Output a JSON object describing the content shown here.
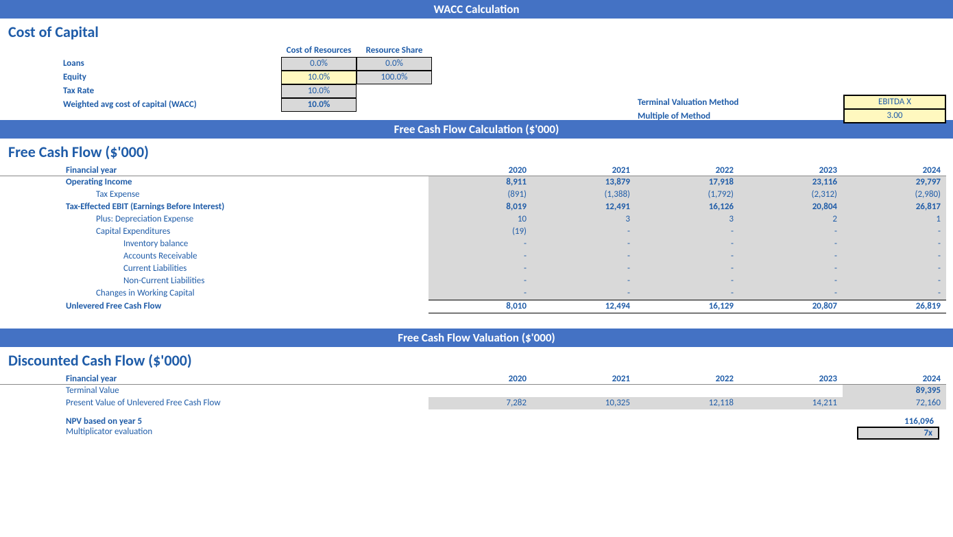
{
  "banners": {
    "wacc": "WACC Calculation",
    "fcf_calc": "Free Cash Flow Calculation ($'000)",
    "fcf_val": "Free Cash Flow Valuation ($'000)"
  },
  "headings": {
    "cost_of_capital": "Cost of Capital",
    "fcf": "Free Cash Flow ($'000)",
    "dcf": "Discounted Cash Flow ($'000)"
  },
  "coc": {
    "hdr_cost": "Cost of Resources",
    "hdr_share": "Resource Share",
    "loans_label": "Loans",
    "loans_cost": "0.0%",
    "loans_share": "0.0%",
    "equity_label": "Equity",
    "equity_cost": "10.0%",
    "equity_share": "100.0%",
    "tax_label": "Tax Rate",
    "tax_val": "10.0%",
    "wacc_label": "Weighted avg cost of capital (WACC)",
    "wacc_val": "10.0%"
  },
  "side": {
    "tvm_label": "Terminal Valuation Method",
    "tvm_val": "EBITDA X",
    "mom_label": "Multiple of Method",
    "mom_val": "3.00"
  },
  "years_label": "Financial year",
  "years": [
    "2020",
    "2021",
    "2022",
    "2023",
    "2024"
  ],
  "fcf": {
    "rows": [
      {
        "label": "Operating Income",
        "indent": 0,
        "bold": true,
        "vals": [
          "8,911",
          "13,879",
          "17,918",
          "23,116",
          "29,797"
        ]
      },
      {
        "label": "Tax Expense",
        "indent": 1,
        "bold": false,
        "vals": [
          "(891)",
          "(1,388)",
          "(1,792)",
          "(2,312)",
          "(2,980)"
        ]
      },
      {
        "label": "Tax-Effected EBIT (Earnings Before Interest)",
        "indent": 0,
        "bold": true,
        "vals": [
          "8,019",
          "12,491",
          "16,126",
          "20,804",
          "26,817"
        ]
      },
      {
        "label": "Plus: Depreciation Expense",
        "indent": 1,
        "bold": false,
        "vals": [
          "10",
          "3",
          "3",
          "2",
          "1"
        ]
      },
      {
        "label": "Capital Expenditures",
        "indent": 1,
        "bold": false,
        "vals": [
          "(19)",
          "-",
          "-",
          "-",
          "-"
        ]
      },
      {
        "label": "Inventory balance",
        "indent": 2,
        "bold": false,
        "vals": [
          "-",
          "-",
          "-",
          "-",
          "-"
        ]
      },
      {
        "label": "Accounts Receivable",
        "indent": 2,
        "bold": false,
        "vals": [
          "-",
          "-",
          "-",
          "-",
          "-"
        ]
      },
      {
        "label": "Current Liabilities",
        "indent": 2,
        "bold": false,
        "vals": [
          "-",
          "-",
          "-",
          "-",
          "-"
        ]
      },
      {
        "label": "Non-Current Liabilities",
        "indent": 2,
        "bold": false,
        "vals": [
          "-",
          "-",
          "-",
          "-",
          "-"
        ]
      },
      {
        "label": "Changes in Working Capital",
        "indent": 1,
        "bold": false,
        "vals": [
          "-",
          "-",
          "-",
          "-",
          "-"
        ]
      }
    ],
    "ufcf_label": "Unlevered Free Cash Flow",
    "ufcf_vals": [
      "8,010",
      "12,494",
      "16,129",
      "20,807",
      "26,819"
    ]
  },
  "dcf": {
    "tv_label": "Terminal Value",
    "tv_val": "89,395",
    "pv_label": "Present Value of Unlevered Free Cash Flow",
    "pv_vals": [
      "7,282",
      "10,325",
      "12,118",
      "14,211",
      "72,160"
    ],
    "npv_label": "NPV based on year 5",
    "npv_val": "116,096",
    "mult_label": "Multiplicator evaluation",
    "mult_val": "7x"
  },
  "colors": {
    "banner_bg": "#4472c4",
    "text": "#1f5ca8",
    "cell_bg": "#d9d9d9",
    "input_bg": "#fff8bf"
  }
}
